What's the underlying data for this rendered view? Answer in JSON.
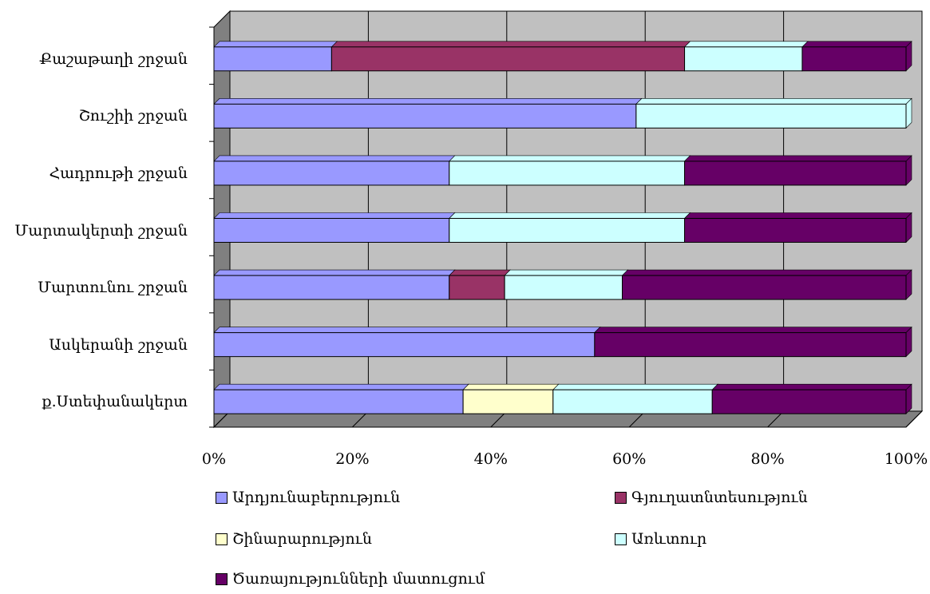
{
  "chart_data": {
    "type": "bar",
    "orientation": "horizontal",
    "stacked": "percent",
    "categories": [
      "Քաշաթաղի շրջան",
      "Շուշիի շրջան",
      "Հադրութի շրջան",
      "Մարտակերտի շրջան",
      "Մարտունու շրջան",
      "Ասկերանի շրջան",
      "ք.Ստեփանակերտ"
    ],
    "series": [
      {
        "name": "Արդյունաբերություն",
        "color": "#9999ff",
        "values": [
          17,
          61,
          34,
          34,
          34,
          55,
          36
        ]
      },
      {
        "name": "Գյուղատնտեսություն",
        "color": "#993366",
        "values": [
          51,
          0,
          0,
          0,
          8,
          0,
          0
        ]
      },
      {
        "name": "Շինարարություն",
        "color": "#ffffcc",
        "values": [
          0,
          0,
          0,
          0,
          0,
          0,
          13
        ]
      },
      {
        "name": "Առևտուր",
        "color": "#ccffff",
        "values": [
          17,
          39,
          34,
          34,
          17,
          0,
          23
        ]
      },
      {
        "name": "Ծառայությունների մատուցում",
        "color": "#660066",
        "values": [
          15,
          0,
          32,
          32,
          41,
          45,
          28
        ]
      }
    ],
    "xticks": [
      "0%",
      "20%",
      "40%",
      "60%",
      "80%",
      "100%"
    ],
    "xlim": [
      0,
      100
    ],
    "grid": true,
    "legend_position": "bottom",
    "background_color": "#c0c0c0"
  }
}
